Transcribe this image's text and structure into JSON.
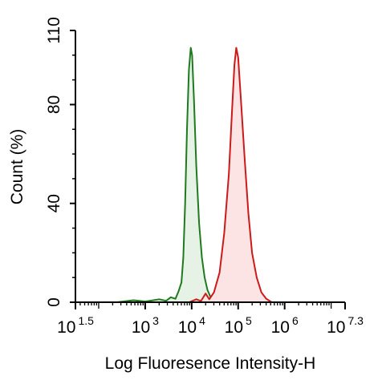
{
  "chart_data": {
    "type": "area",
    "title": "",
    "xlabel": "Log Fluoresence Intensity-H",
    "ylabel": "Count  (%)",
    "x_scale": "log10",
    "xlim": [
      1.5,
      7.3
    ],
    "ylim": [
      0,
      110
    ],
    "grid": false,
    "legend": "none",
    "x_ticks": [
      {
        "base": "10",
        "exp": "1.5",
        "value": 1.5
      },
      {
        "base": "10",
        "exp": "3",
        "value": 3
      },
      {
        "base": "10",
        "exp": "4",
        "value": 4
      },
      {
        "base": "10",
        "exp": "5",
        "value": 5
      },
      {
        "base": "10",
        "exp": "6",
        "value": 6
      },
      {
        "base": "10",
        "exp": "7.3",
        "value": 7.3
      }
    ],
    "y_ticks": [
      {
        "label": "0",
        "value": 0
      },
      {
        "label": "40",
        "value": 40
      },
      {
        "label": "80",
        "value": 80
      },
      {
        "label": "110",
        "value": 110
      }
    ],
    "series": [
      {
        "color": "#1f7a1f",
        "fill": "#e6f2e6",
        "points": [
          [
            2.4,
            0
          ],
          [
            2.75,
            0.8
          ],
          [
            3.0,
            0.3
          ],
          [
            3.3,
            1.2
          ],
          [
            3.45,
            0.6
          ],
          [
            3.55,
            2.0
          ],
          [
            3.65,
            1.4
          ],
          [
            3.72,
            4.5
          ],
          [
            3.78,
            8
          ],
          [
            3.82,
            18
          ],
          [
            3.86,
            40
          ],
          [
            3.9,
            70
          ],
          [
            3.94,
            94
          ],
          [
            3.98,
            103
          ],
          [
            4.01,
            100
          ],
          [
            4.05,
            82
          ],
          [
            4.1,
            55
          ],
          [
            4.16,
            32
          ],
          [
            4.22,
            18
          ],
          [
            4.28,
            10
          ],
          [
            4.34,
            5
          ],
          [
            4.42,
            1.5
          ],
          [
            4.5,
            0
          ]
        ]
      },
      {
        "color": "#cc1a1a",
        "fill": "#fce4e4",
        "points": [
          [
            3.95,
            0
          ],
          [
            4.1,
            1.2
          ],
          [
            4.2,
            0.5
          ],
          [
            4.3,
            3.5
          ],
          [
            4.38,
            1.2
          ],
          [
            4.48,
            4
          ],
          [
            4.6,
            12
          ],
          [
            4.7,
            28
          ],
          [
            4.8,
            52
          ],
          [
            4.87,
            78
          ],
          [
            4.92,
            96
          ],
          [
            4.96,
            103
          ],
          [
            5.0,
            99
          ],
          [
            5.06,
            82
          ],
          [
            5.14,
            58
          ],
          [
            5.22,
            36
          ],
          [
            5.3,
            20
          ],
          [
            5.4,
            10
          ],
          [
            5.5,
            4
          ],
          [
            5.6,
            1.5
          ],
          [
            5.72,
            0
          ]
        ]
      }
    ]
  }
}
